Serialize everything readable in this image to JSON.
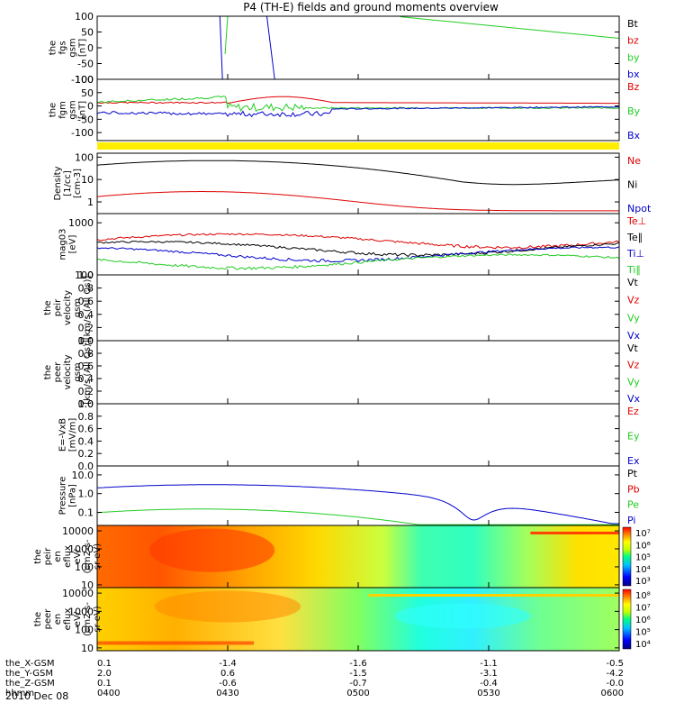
{
  "title": "P4 (TH-E) fields and ground moments overview",
  "date_label": "2010 Dec 08",
  "x_axis": {
    "ticks": [
      "0400",
      "0430",
      "0500",
      "0530",
      "0600"
    ],
    "rows": [
      {
        "label": "the_X-GSM",
        "values": [
          "0.1",
          "-1.4",
          "-1.6",
          "-1.1",
          "-0.5"
        ]
      },
      {
        "label": "the_Y-GSM",
        "values": [
          "2.0",
          "0.6",
          "-1.5",
          "-3.1",
          "-4.2"
        ]
      },
      {
        "label": "the_Z-GSM",
        "values": [
          "0.1",
          "-0.6",
          "-0.7",
          "-0.4",
          "-0.0"
        ]
      },
      {
        "label": "hhmm",
        "values": [
          "0400",
          "0430",
          "0500",
          "0530",
          "0600"
        ]
      }
    ]
  },
  "colorbar_ticks_a": [
    "10⁷",
    "10⁶",
    "10⁵",
    "10⁴",
    "10³"
  ],
  "colorbar_ticks_b": [
    "10⁸",
    "10⁷",
    "10⁶",
    "10⁵",
    "10⁴"
  ],
  "chart_data": [
    {
      "id": "fgs",
      "type": "line",
      "ylabel": [
        "the",
        "fgs",
        "gsm",
        "[nT]"
      ],
      "yticks": [
        "100",
        "50",
        "0",
        "-50",
        "-100"
      ],
      "ylim": [
        -100,
        100
      ],
      "legend": [
        {
          "name": "Bt",
          "color": "#000000"
        },
        {
          "name": "bz",
          "color": "#dd0000"
        },
        {
          "name": "by",
          "color": "#22cc22"
        },
        {
          "name": "bx",
          "color": "#0000cc"
        }
      ]
    },
    {
      "id": "fgm",
      "type": "line",
      "ylabel": [
        "the",
        "fgm",
        "gsm",
        "[nT]"
      ],
      "yticks": [
        "100",
        "50",
        "0",
        "-50",
        "-100"
      ],
      "ylim": [
        -130,
        100
      ],
      "legend": [
        {
          "name": "Bz",
          "color": "#dd0000"
        },
        {
          "name": "By",
          "color": "#22cc22"
        },
        {
          "name": "Bx",
          "color": "#0000cc"
        }
      ]
    },
    {
      "id": "density",
      "type": "line",
      "ylabel": [
        "Density",
        "[1/cc]",
        "[cm-3]"
      ],
      "yticks": [
        "100",
        "10",
        "1"
      ],
      "ylim": [
        0.3,
        150
      ],
      "log": true,
      "legend": [
        {
          "name": "Ne",
          "color": "#dd0000"
        },
        {
          "name": "Ni",
          "color": "#000000"
        },
        {
          "name": "Npot",
          "color": "#0000cc"
        }
      ]
    },
    {
      "id": "temp",
      "type": "line",
      "ylabel": [
        "mag03",
        "[eV]"
      ],
      "yticks": [
        "1000",
        "100"
      ],
      "ylim": [
        100,
        1500
      ],
      "log": true,
      "legend": [
        {
          "name": "Te⊥",
          "color": "#dd0000"
        },
        {
          "name": "Te∥",
          "color": "#000000"
        },
        {
          "name": "Ti⊥",
          "color": "#0000cc"
        },
        {
          "name": "Ti∥",
          "color": "#22cc22"
        }
      ]
    },
    {
      "id": "peir",
      "type": "line",
      "ylabel": [
        "the",
        "peir",
        "velocity",
        "gsm",
        "[km/s (All Qs)]"
      ],
      "yticks": [
        "1.0",
        "0.8",
        "0.6",
        "0.4",
        "0.2",
        "0.0"
      ],
      "ylim": [
        0,
        1
      ],
      "legend": [
        {
          "name": "Vt",
          "color": "#000000"
        },
        {
          "name": "Vz",
          "color": "#dd0000"
        },
        {
          "name": "Vy",
          "color": "#22cc22"
        },
        {
          "name": "Vx",
          "color": "#0000cc"
        }
      ]
    },
    {
      "id": "peer",
      "type": "line",
      "ylabel": [
        "the",
        "peer",
        "velocity",
        "gsm",
        "[km/s (All Qs)]"
      ],
      "yticks": [
        "1.0",
        "0.8",
        "0.6",
        "0.4",
        "0.2",
        "0.0"
      ],
      "ylim": [
        0,
        1
      ],
      "legend": [
        {
          "name": "Vt",
          "color": "#000000"
        },
        {
          "name": "Vz",
          "color": "#dd0000"
        },
        {
          "name": "Vy",
          "color": "#22cc22"
        },
        {
          "name": "Vx",
          "color": "#0000cc"
        }
      ]
    },
    {
      "id": "efield",
      "type": "line",
      "ylabel": [
        "E=-VxB",
        "[mV/m]"
      ],
      "yticks": [
        "1.0",
        "0.8",
        "0.6",
        "0.4",
        "0.2",
        "0.0"
      ],
      "ylim": [
        0,
        1
      ],
      "legend": [
        {
          "name": "Ez",
          "color": "#dd0000"
        },
        {
          "name": "Ey",
          "color": "#22cc22"
        },
        {
          "name": "Ex",
          "color": "#0000cc"
        }
      ]
    },
    {
      "id": "pressure",
      "type": "line",
      "ylabel": [
        "Pressure",
        "[nPa]"
      ],
      "yticks": [
        "10.0",
        "1.0",
        "0.1"
      ],
      "ylim": [
        0.02,
        30
      ],
      "log": true,
      "legend": [
        {
          "name": "Pt",
          "color": "#000000"
        },
        {
          "name": "Pb",
          "color": "#dd0000"
        },
        {
          "name": "Pe",
          "color": "#22cc22"
        },
        {
          "name": "Pi",
          "color": "#0000cc"
        }
      ]
    },
    {
      "id": "peir_spec",
      "type": "heatmap",
      "ylabel": [
        "the",
        "peir",
        "en",
        "eflux",
        "eV/",
        "(cm2-s-",
        "sr-eV)"
      ],
      "yticks": [
        "10000",
        "1000",
        "100",
        "10"
      ],
      "ylim": [
        7,
        20000
      ],
      "log": true
    },
    {
      "id": "peer_spec",
      "type": "heatmap",
      "ylabel": [
        "the",
        "peer",
        "en",
        "eflux",
        "eV/",
        "(cm2-s-",
        "sr-eV)"
      ],
      "yticks": [
        "10000",
        "1000",
        "100",
        "10"
      ],
      "ylim": [
        7,
        20000
      ],
      "log": true
    }
  ]
}
